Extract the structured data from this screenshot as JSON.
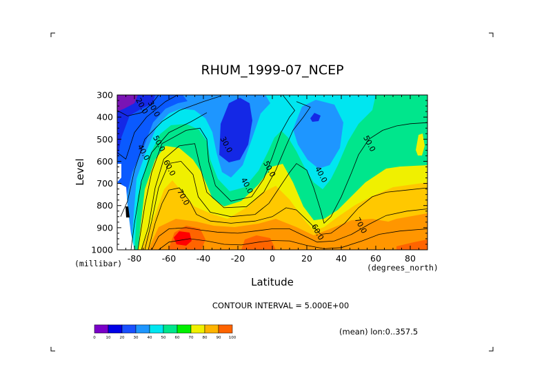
{
  "chart_data": {
    "type": "heatmap",
    "title": "RHUM_1999-07_NCEP",
    "xlabel": "Latitude",
    "ylabel": "Level",
    "x_units": "(degrees_north)",
    "y_units": "(millibar)",
    "xlim": [
      -90,
      90
    ],
    "ylim": [
      1000,
      300
    ],
    "x_ticks": [
      -80,
      -60,
      -40,
      -20,
      0,
      20,
      40,
      60,
      80
    ],
    "x_tick_labels": [
      "-80",
      "-60",
      "-40",
      "-20",
      "0",
      "20",
      "40",
      "60",
      "80"
    ],
    "y_ticks": [
      300,
      400,
      500,
      600,
      700,
      800,
      900,
      1000
    ],
    "contour_interval_text": "CONTOUR INTERVAL = 5.000E+00",
    "footnote": "(mean) lon:0..357.5",
    "grid": false,
    "colorbar": {
      "levels": [
        0,
        10,
        20,
        30,
        40,
        50,
        60,
        70,
        80,
        90,
        100
      ],
      "labels": [
        "0",
        "10",
        "20",
        "30",
        "40",
        "50",
        "60",
        "70",
        "80",
        "90",
        "100"
      ],
      "colors": [
        "#7a00c8",
        "#0000e6",
        "#1a50ff",
        "#1e96ff",
        "#00e6f0",
        "#00e68c",
        "#00f000",
        "#f0f000",
        "#ffb400",
        "#ff6400",
        "#ff0000"
      ],
      "placement": "bottom-left"
    },
    "contour_labels": [
      {
        "text": "20.0",
        "lat": -77,
        "lev": 355
      },
      {
        "text": "30.0",
        "lat": -70,
        "lev": 368
      },
      {
        "text": "40.0",
        "lat": -76,
        "lev": 565
      },
      {
        "text": "50.0",
        "lat": -67,
        "lev": 525
      },
      {
        "text": "60.0",
        "lat": -61,
        "lev": 635
      },
      {
        "text": "70.0",
        "lat": -53,
        "lev": 768
      },
      {
        "text": "30.0",
        "lat": -28,
        "lev": 530
      },
      {
        "text": "40.0",
        "lat": -16,
        "lev": 715
      },
      {
        "text": "50.0",
        "lat": -3,
        "lev": 640
      },
      {
        "text": "40.0",
        "lat": 27,
        "lev": 665
      },
      {
        "text": "60.0",
        "lat": 25,
        "lev": 925
      },
      {
        "text": "70.0",
        "lat": 50,
        "lev": 895
      },
      {
        "text": "50.0",
        "lat": 55,
        "lev": 525
      }
    ],
    "contour_lines": [
      {
        "level": 20,
        "points": [
          [
            -90,
            370
          ],
          [
            -84,
            395
          ],
          [
            -76,
            380
          ],
          [
            -70,
            340
          ],
          [
            -66,
            300
          ]
        ]
      },
      {
        "level": 30,
        "points": [
          [
            -90,
            560
          ],
          [
            -85,
            590
          ],
          [
            -80,
            470
          ],
          [
            -73,
            400
          ],
          [
            -62,
            330
          ],
          [
            -55,
            300
          ]
        ]
      },
      {
        "level": 40,
        "points": [
          [
            -88,
            850
          ],
          [
            -84,
            780
          ],
          [
            -80,
            640
          ],
          [
            -74,
            500
          ],
          [
            -64,
            420
          ],
          [
            -54,
            370
          ],
          [
            -40,
            330
          ],
          [
            -30,
            305
          ]
        ]
      },
      {
        "level": 45,
        "points": [
          [
            -82,
            1000
          ],
          [
            -80,
            880
          ],
          [
            -76,
            690
          ],
          [
            -70,
            560
          ],
          [
            -60,
            470
          ],
          [
            -47,
            420
          ],
          [
            -38,
            380
          ]
        ]
      },
      {
        "level": 50,
        "points": [
          [
            -78,
            1000
          ],
          [
            -74,
            800
          ],
          [
            -70,
            650
          ],
          [
            -64,
            520
          ],
          [
            -50,
            460
          ],
          [
            -42,
            450
          ],
          [
            -38,
            500
          ],
          [
            -37,
            600
          ],
          [
            -33,
            710
          ],
          [
            -24,
            780
          ],
          [
            -12,
            760
          ],
          [
            -5,
            680
          ],
          [
            0,
            580
          ],
          [
            5,
            470
          ],
          [
            10,
            400
          ],
          [
            13,
            370
          ],
          [
            9,
            330
          ],
          [
            6,
            300
          ]
        ]
      },
      {
        "level": 55,
        "points": [
          [
            -76,
            1000
          ],
          [
            -72,
            900
          ],
          [
            -68,
            720
          ],
          [
            -63,
            590
          ],
          [
            -54,
            530
          ],
          [
            -45,
            520
          ],
          [
            -42,
            620
          ],
          [
            -38,
            740
          ],
          [
            -28,
            810
          ],
          [
            -15,
            805
          ],
          [
            -5,
            740
          ],
          [
            2,
            640
          ],
          [
            8,
            530
          ],
          [
            12,
            460
          ],
          [
            18,
            400
          ],
          [
            22,
            355
          ],
          [
            14,
            330
          ]
        ]
      },
      {
        "level": 60,
        "points": [
          [
            -74,
            1000
          ],
          [
            -70,
            870
          ],
          [
            -66,
            720
          ],
          [
            -60,
            610
          ],
          [
            -53,
            600
          ],
          [
            -46,
            660
          ],
          [
            -43,
            760
          ],
          [
            -36,
            830
          ],
          [
            -24,
            850
          ],
          [
            -10,
            840
          ],
          [
            -2,
            790
          ],
          [
            4,
            720
          ],
          [
            10,
            650
          ],
          [
            14,
            610
          ],
          [
            20,
            640
          ],
          [
            24,
            720
          ],
          [
            28,
            820
          ],
          [
            30,
            880
          ],
          [
            34,
            850
          ],
          [
            40,
            760
          ],
          [
            46,
            650
          ],
          [
            50,
            570
          ],
          [
            56,
            500
          ],
          [
            64,
            460
          ],
          [
            72,
            440
          ],
          [
            80,
            430
          ],
          [
            90,
            425
          ]
        ]
      },
      {
        "level": 70,
        "points": [
          [
            -72,
            1000
          ],
          [
            -68,
            880
          ],
          [
            -64,
            790
          ],
          [
            -60,
            730
          ],
          [
            -54,
            720
          ],
          [
            -48,
            780
          ],
          [
            -44,
            840
          ],
          [
            -36,
            870
          ],
          [
            -24,
            880
          ],
          [
            -10,
            870
          ],
          [
            0,
            850
          ],
          [
            8,
            810
          ],
          [
            14,
            820
          ],
          [
            22,
            880
          ],
          [
            28,
            930
          ],
          [
            34,
            925
          ],
          [
            42,
            880
          ],
          [
            50,
            810
          ],
          [
            58,
            760
          ],
          [
            66,
            740
          ],
          [
            78,
            730
          ],
          [
            90,
            720
          ]
        ]
      },
      {
        "level": 80,
        "points": [
          [
            -70,
            1000
          ],
          [
            -66,
            940
          ],
          [
            -60,
            905
          ],
          [
            -50,
            900
          ],
          [
            -42,
            910
          ],
          [
            -32,
            920
          ],
          [
            -20,
            925
          ],
          [
            -10,
            915
          ],
          [
            0,
            905
          ],
          [
            10,
            905
          ],
          [
            18,
            935
          ],
          [
            26,
            965
          ],
          [
            36,
            960
          ],
          [
            46,
            930
          ],
          [
            56,
            885
          ],
          [
            66,
            845
          ],
          [
            78,
            825
          ],
          [
            90,
            815
          ]
        ]
      },
      {
        "level": 85,
        "points": [
          [
            -66,
            1000
          ],
          [
            -60,
            965
          ],
          [
            -48,
            950
          ],
          [
            -38,
            960
          ],
          [
            -28,
            975
          ],
          [
            -18,
            978
          ],
          [
            -8,
            965
          ],
          [
            0,
            958
          ],
          [
            10,
            960
          ],
          [
            20,
            980
          ],
          [
            30,
            995
          ],
          [
            40,
            990
          ],
          [
            52,
            960
          ],
          [
            62,
            930
          ],
          [
            74,
            915
          ],
          [
            90,
            905
          ]
        ]
      }
    ]
  }
}
